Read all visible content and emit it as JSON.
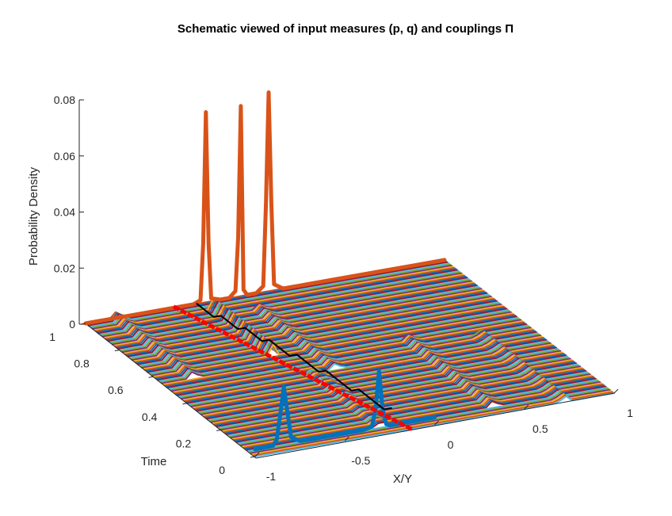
{
  "chart_data": {
    "type": "line",
    "projection": "3d",
    "title": "Schematic viewed of input measures (p, q) and couplings Π",
    "xlabel": "X/Y",
    "ylabel": "Time",
    "zlabel": "Probability Density",
    "xlim": [
      -1,
      1
    ],
    "ylim": [
      0,
      1
    ],
    "zlim": [
      0,
      0.08
    ],
    "x_ticks": [
      "-1",
      "-0.5",
      "0",
      "0.5",
      "1"
    ],
    "y_ticks": [
      "0",
      "0.2",
      "0.4",
      "0.6",
      "0.8",
      "1"
    ],
    "z_ticks": [
      "0",
      "0.02",
      "0.04",
      "0.06",
      "0.08"
    ],
    "grid": false,
    "legend": "none",
    "colors": {
      "p_curve": "#0072BD",
      "q_curve": "#D95319",
      "transport_path": "#000000",
      "dotted_line": "#FF0000",
      "ribbon_palette": [
        "#0072BD",
        "#D95319",
        "#EDB120",
        "#7E2F8E",
        "#77AC30",
        "#4DBEEE",
        "#A2142F"
      ]
    },
    "series": [
      {
        "role": "input measure p (at time 0)",
        "color": "#0072BD",
        "x": [
          -1.0,
          -0.95,
          -0.9,
          -0.88,
          -0.86,
          -0.84,
          -0.82,
          -0.8,
          -0.75,
          -0.7,
          -0.6,
          -0.5,
          -0.4,
          -0.35,
          -0.33,
          -0.31,
          -0.29,
          -0.27,
          -0.25,
          -0.2,
          -0.1,
          0.0
        ],
        "y": [
          0.0025,
          0.0025,
          0.0026,
          0.0045,
          0.013,
          0.022,
          0.013,
          0.0045,
          0.0026,
          0.0025,
          0.0025,
          0.0025,
          0.0025,
          0.0032,
          0.0085,
          0.0218,
          0.0085,
          0.0032,
          0.0025,
          0.0025,
          0.0025,
          0.0025
        ]
      },
      {
        "role": "input measure q (at time 1)",
        "color": "#D95319",
        "x": [
          -1.0,
          -0.5,
          -0.4,
          -0.36,
          -0.345,
          -0.33,
          -0.315,
          -0.3,
          -0.25,
          -0.2,
          -0.165,
          -0.15,
          -0.135,
          -0.12,
          -0.1,
          -0.05,
          -0.01,
          0.005,
          0.02,
          0.035,
          0.05,
          0.1,
          0.5,
          1.0
        ],
        "y": [
          0.0,
          0.0,
          0.0,
          0.001,
          0.02,
          0.065,
          0.02,
          0.001,
          0.0,
          0.0,
          0.002,
          0.02,
          0.065,
          0.002,
          0.0,
          0.0,
          0.002,
          0.03,
          0.068,
          0.03,
          0.002,
          0.0,
          0.0,
          0.0
        ]
      },
      {
        "role": "transport path",
        "color": "#000000",
        "x": [
          -0.38,
          -0.38,
          -0.34,
          -0.34,
          -0.3,
          -0.3,
          -0.26,
          -0.26,
          -0.22,
          -0.22,
          -0.18,
          -0.18,
          -0.14,
          -0.14,
          -0.1
        ],
        "t": [
          1.0,
          0.9,
          0.9,
          0.8,
          0.8,
          0.7,
          0.7,
          0.58,
          0.58,
          0.45,
          0.45,
          0.3,
          0.3,
          0.15,
          0.15
        ]
      },
      {
        "role": "dotted reference line",
        "color": "#FF0000",
        "x": [
          -0.5,
          -0.13
        ],
        "t": [
          1.0,
          0.0
        ]
      }
    ]
  }
}
